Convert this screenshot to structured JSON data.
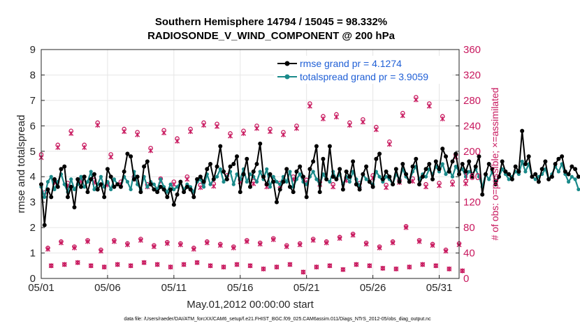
{
  "chart_data": {
    "type": "line",
    "title_line1": "Southern Hemisphere 14794 / 15045 = 98.332%",
    "title_line2": "RADIOSONDE_V_WIND_COMPONENT @ 200 hPa",
    "xlabel": "May.01,2012 00:00:00 start",
    "ylabel": "rmse and totalspread",
    "ylabel_right": "# of obs: o=possible; ×=assimilated",
    "footnote": "data file: /Users/raeder/DAI/ATM_forcXX/CAM6_setup/f.e21.FHIST_BGC.f09_025.CAM6assim.011/Diags_NTrS_2012-05/obs_diag_output.nc",
    "xlim": [
      0,
      31.5
    ],
    "ylim": [
      0,
      9
    ],
    "ylim_right": [
      0,
      360
    ],
    "grid": true,
    "x_ticks": [
      {
        "value": 0,
        "label": "05/01"
      },
      {
        "value": 5,
        "label": "05/06"
      },
      {
        "value": 10,
        "label": "05/11"
      },
      {
        "value": 15,
        "label": "05/16"
      },
      {
        "value": 20,
        "label": "05/21"
      },
      {
        "value": 25,
        "label": "05/26"
      },
      {
        "value": 30,
        "label": "05/31"
      }
    ],
    "y_ticks": [
      "0",
      "1",
      "2",
      "3",
      "4",
      "5",
      "6",
      "7",
      "8",
      "9"
    ],
    "y_ticks_right": [
      "0",
      "40",
      "80",
      "120",
      "160",
      "200",
      "240",
      "280",
      "320",
      "360"
    ],
    "legend": [
      {
        "label": "rmse grand pr = 4.1274",
        "color": "#000000"
      },
      {
        "label": "totalspread grand pr = 3.9059",
        "color": "#1a8a8a"
      }
    ],
    "colors": {
      "rmse": "#000000",
      "spread": "#1a8a8a",
      "obs": "#c8185e",
      "grid": "#e6e6e6"
    },
    "step": 0.25,
    "series": [
      {
        "name": "rmse",
        "values": [
          3.7,
          2.1,
          3.5,
          3.2,
          3.9,
          3.6,
          4.3,
          4.4,
          3.2,
          3.6,
          2.8,
          3.9,
          3.6,
          4.0,
          3.4,
          3.9,
          4.1,
          3.5,
          3.7,
          3.2,
          4.3,
          4.0,
          3.6,
          3.7,
          3.6,
          4.2,
          4.9,
          4.8,
          3.9,
          4.0,
          3.4,
          4.4,
          4.6,
          3.7,
          3.5,
          3.4,
          3.6,
          3.5,
          3.2,
          3.5,
          2.9,
          3.3,
          3.8,
          3.4,
          3.6,
          3.5,
          3.2,
          3.9,
          4.0,
          3.8,
          4.3,
          4.5,
          3.9,
          4.4,
          5.2,
          4.2,
          3.9,
          4.4,
          4.5,
          4.8,
          3.4,
          4.1,
          4.7,
          3.6,
          4.2,
          4.5,
          5.3,
          4.0,
          3.7,
          4.1,
          3.8,
          3.0,
          3.5,
          3.8,
          4.3,
          3.6,
          3.4,
          4.2,
          4.4,
          4.0,
          3.2,
          4.3,
          4.6,
          5.2,
          3.4,
          4.7,
          3.9,
          5.2,
          4.0,
          3.9,
          4.3,
          3.5,
          4.2,
          4.0,
          4.6,
          3.7,
          3.5,
          4.1,
          4.4,
          3.8,
          3.6,
          4.7,
          4.9,
          3.9,
          4.2,
          4.0,
          3.7,
          4.3,
          3.8,
          4.5,
          4.1,
          3.8,
          4.4,
          4.7,
          3.7,
          4.0,
          4.3,
          4.5,
          3.9,
          4.6,
          4.3,
          5.1,
          4.8,
          4.2,
          4.6,
          4.9,
          4.1,
          4.5,
          4.2,
          4.6,
          4.0,
          4.4,
          4.8,
          3.3,
          4.1,
          4.5,
          4.3,
          3.7,
          4.0,
          4.6,
          4.2,
          4.1,
          3.9,
          4.4,
          4.2,
          5.8,
          4.5,
          4.8,
          4.0,
          4.1,
          3.8,
          4.3,
          4.6,
          3.9,
          4.0,
          4.5,
          4.7,
          4.8,
          4.2,
          4.1,
          4.4,
          4.3,
          4.0
        ]
      },
      {
        "name": "totalspread",
        "values": [
          3.6,
          3.2,
          3.8,
          4.0,
          3.5,
          3.8,
          4.1,
          3.7,
          3.4,
          3.9,
          3.5,
          3.7,
          4.0,
          3.6,
          3.8,
          4.2,
          3.5,
          3.7,
          4.0,
          3.6,
          3.8,
          3.5,
          3.9,
          3.7,
          3.6,
          4.0,
          3.8,
          3.5,
          4.2,
          3.7,
          3.5,
          4.0,
          3.6,
          3.8,
          3.7,
          3.5,
          3.9,
          3.6,
          3.4,
          3.7,
          3.5,
          3.6,
          3.8,
          3.5,
          3.7,
          3.6,
          3.4,
          3.8,
          3.9,
          3.6,
          4.1,
          3.7,
          3.9,
          4.0,
          4.3,
          3.8,
          4.0,
          4.2,
          3.7,
          4.1,
          3.9,
          4.3,
          3.8,
          4.1,
          4.0,
          3.8,
          4.2,
          3.9,
          4.3,
          3.6,
          4.0,
          3.8,
          3.7,
          4.0,
          3.8,
          4.2,
          3.6,
          3.9,
          4.1,
          3.8,
          3.7,
          4.0,
          4.2,
          3.9,
          3.7,
          4.1,
          3.9,
          3.8,
          4.2,
          3.9,
          4.1,
          3.7,
          4.0,
          3.8,
          4.2,
          3.9,
          3.6,
          4.1,
          3.9,
          3.8,
          3.7,
          4.2,
          4.0,
          3.8,
          4.0,
          3.9,
          3.7,
          4.1,
          3.9,
          4.3,
          4.0,
          3.8,
          4.2,
          4.4,
          3.9,
          4.1,
          4.0,
          4.3,
          4.1,
          4.4,
          4.2,
          4.5,
          4.1,
          4.3,
          4.0,
          4.4,
          4.2,
          4.3,
          4.0,
          4.2,
          4.1,
          4.3,
          4.0,
          3.6,
          4.1,
          3.9,
          4.2,
          3.8,
          4.0,
          4.3,
          4.1,
          3.9,
          4.0,
          4.2,
          4.1,
          4.6,
          4.2,
          4.5,
          4.0,
          3.9,
          4.0,
          4.1,
          4.3,
          3.9,
          4.1,
          4.4,
          4.2,
          4.5,
          4.1,
          3.8,
          4.0,
          3.9,
          3.5
        ]
      },
      {
        "name": "obs_possible_00Z",
        "values": [
          195,
          155,
          150,
          157,
          155,
          150,
          152,
          160,
          148,
          157,
          152,
          160,
          147,
          149,
          162,
          156,
          153,
          148,
          150,
          160,
          155,
          152,
          148,
          158,
          150,
          162,
          147,
          155,
          157,
          148,
          150,
          152,
          153
        ]
      },
      {
        "name": "obs_assimilated_00Z",
        "values": [
          190,
          151,
          146,
          153,
          151,
          147,
          148,
          156,
          144,
          153,
          148,
          156,
          143,
          145,
          158,
          152,
          149,
          144,
          146,
          156,
          151,
          148,
          144,
          154,
          146,
          158,
          143,
          151,
          153,
          144,
          146,
          148,
          149
        ]
      },
      {
        "name": "obs_possible_12Z",
        "values": [
          48,
          58,
          50,
          60,
          45,
          60,
          55,
          62,
          52,
          57,
          55,
          48,
          58,
          54,
          50,
          60,
          56,
          63,
          52,
          55,
          62,
          58,
          65,
          70,
          56,
          50,
          58,
          82,
          60,
          54,
          45,
          55
        ]
      },
      {
        "name": "obs_assimilated_12Z",
        "values": [
          46,
          56,
          48,
          58,
          43,
          58,
          53,
          60,
          50,
          55,
          53,
          46,
          56,
          52,
          48,
          58,
          54,
          61,
          50,
          53,
          60,
          56,
          63,
          68,
          54,
          48,
          56,
          80,
          58,
          52,
          43,
          53
        ]
      },
      {
        "name": "obs_possible_06Z",
        "values": [
          135,
          210,
          232,
          210,
          245,
          195,
          235,
          230,
          205,
          233,
          220,
          235,
          245,
          243,
          228,
          232,
          240,
          235,
          230,
          240,
          275,
          255,
          258,
          245,
          250,
          238,
          215,
          260,
          285,
          275,
          255,
          195
        ]
      },
      {
        "name": "obs_assimilated_06Z",
        "values": [
          131,
          206,
          228,
          206,
          241,
          191,
          231,
          226,
          201,
          229,
          216,
          231,
          241,
          239,
          224,
          228,
          236,
          231,
          226,
          236,
          271,
          251,
          254,
          241,
          246,
          234,
          211,
          256,
          281,
          271,
          251,
          191
        ]
      },
      {
        "name": "obs_possible_18Z",
        "values": [
          20,
          22,
          25,
          20,
          18,
          22,
          20,
          25,
          22,
          18,
          22,
          25,
          20,
          18,
          22,
          20,
          15,
          18,
          22,
          10,
          18,
          20,
          14,
          22,
          20,
          16,
          15,
          18,
          22,
          20,
          15,
          12
        ]
      },
      {
        "name": "obs_assimilated_18Z",
        "values": [
          20,
          22,
          25,
          20,
          18,
          22,
          20,
          25,
          22,
          18,
          22,
          25,
          20,
          18,
          22,
          20,
          15,
          18,
          22,
          10,
          18,
          20,
          14,
          22,
          20,
          16,
          15,
          18,
          22,
          20,
          15,
          12
        ]
      }
    ]
  }
}
